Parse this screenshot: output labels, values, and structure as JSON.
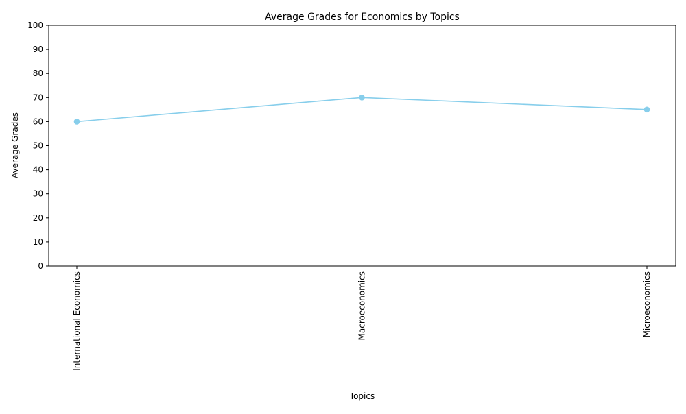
{
  "chart_data": {
    "type": "line",
    "title": "Average Grades for Economics by Topics",
    "xlabel": "Topics",
    "ylabel": "Average Grades",
    "categories": [
      "International Economics",
      "Macroeconomics",
      "Microeconomics"
    ],
    "series": [
      {
        "values": [
          60,
          70,
          65
        ],
        "color": "#87ceeb"
      }
    ],
    "ylim": [
      0,
      100
    ],
    "yticks": [
      0,
      10,
      20,
      30,
      40,
      50,
      60,
      70,
      80,
      90,
      100
    ],
    "grid": false,
    "legend": "none"
  }
}
